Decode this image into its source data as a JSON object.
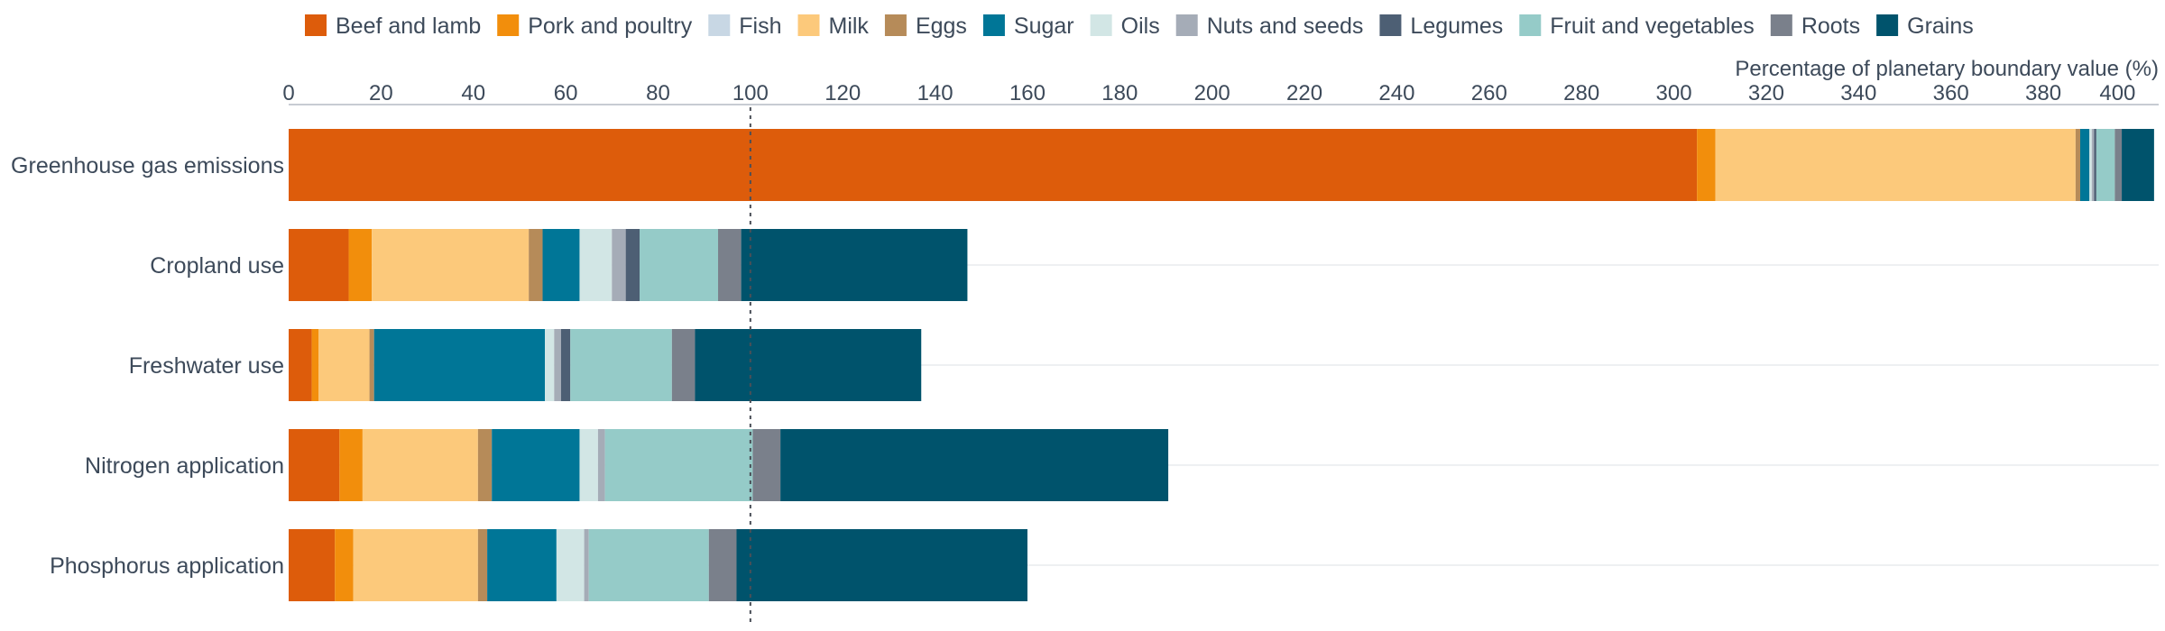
{
  "chart_data": {
    "type": "bar",
    "orientation": "horizontal",
    "stacked": true,
    "xlabel": "Percentage of planetary boundary value (%)",
    "xlim": [
      0,
      405
    ],
    "x_ticks": [
      "0",
      "20",
      "40",
      "60",
      "80",
      "100",
      "120",
      "140",
      "160",
      "180",
      "200",
      "220",
      "240",
      "260",
      "280",
      "300",
      "320",
      "340",
      "360",
      "380",
      "400"
    ],
    "x_axis_position": "top",
    "reference_line": 100,
    "grid": "horizontal lines between categories",
    "legend_placement": "top",
    "categories": [
      "Greenhouse gas emissions",
      "Cropland use",
      "Freshwater use",
      "Nitrogen application",
      "Phosphorus application"
    ],
    "series": [
      {
        "name": "Beef and lamb",
        "color": "#dd5c0b",
        "values": [
          305,
          13,
          5,
          11,
          10
        ]
      },
      {
        "name": "Pork and poultry",
        "color": "#f28e0c",
        "values": [
          4,
          5,
          1.5,
          5,
          4
        ]
      },
      {
        "name": "Fish",
        "color": "#c8d7e4",
        "values": [
          0,
          0,
          0,
          0,
          0
        ]
      },
      {
        "name": "Milk",
        "color": "#fcc97b",
        "values": [
          78,
          34,
          11,
          25,
          27
        ]
      },
      {
        "name": "Eggs",
        "color": "#b68b59",
        "values": [
          1,
          3,
          1,
          3,
          2
        ]
      },
      {
        "name": "Sugar",
        "color": "#007697",
        "values": [
          2,
          8,
          37,
          19,
          15
        ]
      },
      {
        "name": "Oils",
        "color": "#d2e6e5",
        "values": [
          0.5,
          7,
          2,
          4,
          6
        ]
      },
      {
        "name": "Nuts and seeds",
        "color": "#a5acb7",
        "values": [
          0.5,
          3,
          1.5,
          1.5,
          1
        ]
      },
      {
        "name": "Legumes",
        "color": "#4d5f74",
        "values": [
          0.5,
          3,
          2,
          0,
          0
        ]
      },
      {
        "name": "Fruit and vegetables",
        "color": "#95cbc8",
        "values": [
          4,
          17,
          22,
          32,
          26
        ]
      },
      {
        "name": "Roots",
        "color": "#7a808b",
        "values": [
          1.5,
          5,
          5,
          6,
          6
        ]
      },
      {
        "name": "Grains",
        "color": "#00536c",
        "values": [
          7,
          49,
          49,
          84,
          63
        ]
      }
    ]
  }
}
